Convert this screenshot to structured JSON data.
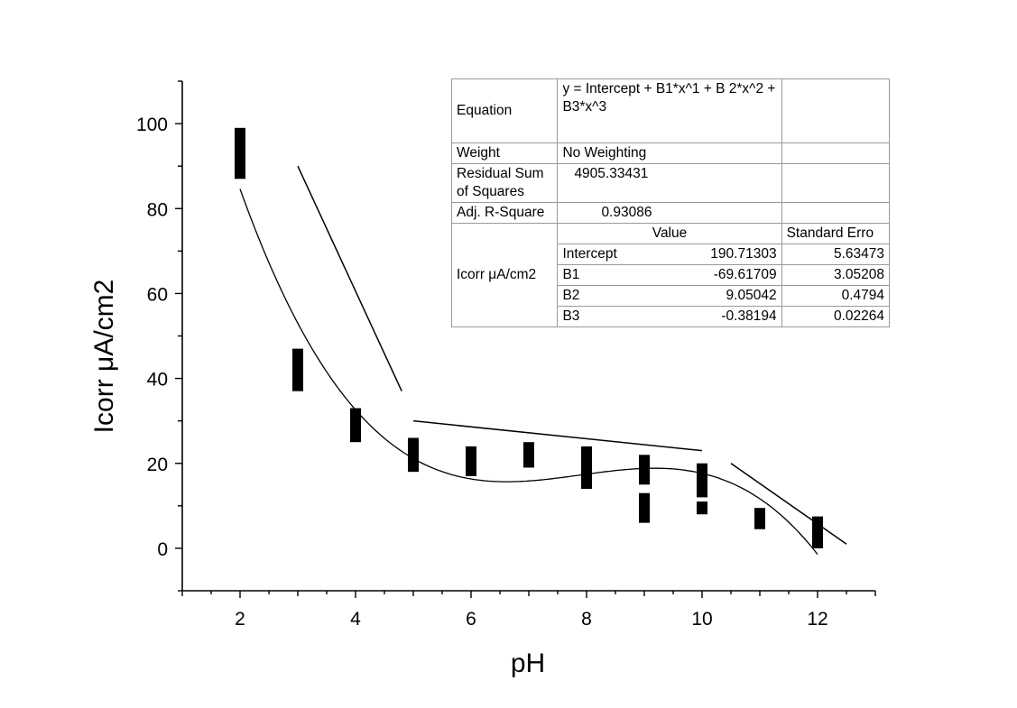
{
  "chart_data": {
    "type": "scatter",
    "title": "",
    "xlabel": "pH",
    "ylabel": "Icorr μA/cm2",
    "xlim": [
      1,
      13
    ],
    "ylim": [
      -10,
      110
    ],
    "x_ticks": [
      2,
      4,
      6,
      8,
      10,
      12
    ],
    "y_ticks": [
      0,
      20,
      40,
      60,
      80,
      100
    ],
    "grid": false,
    "series": [
      {
        "name": "Icorr",
        "marker": "filled-rectangle",
        "points": [
          {
            "x": 2,
            "low": 87,
            "high": 99
          },
          {
            "x": 3,
            "low": 37,
            "high": 47
          },
          {
            "x": 4,
            "low": 25,
            "high": 33
          },
          {
            "x": 5,
            "low": 18,
            "high": 26
          },
          {
            "x": 6,
            "low": 17,
            "high": 24
          },
          {
            "x": 7,
            "low": 19,
            "high": 25
          },
          {
            "x": 8,
            "low": 14,
            "high": 24
          },
          {
            "x": 9,
            "low": 15,
            "high": 22
          },
          {
            "x": 9,
            "low": 6,
            "high": 13
          },
          {
            "x": 10,
            "low": 12,
            "high": 20
          },
          {
            "x": 10,
            "low": 8,
            "high": 11
          },
          {
            "x": 11,
            "low": 4.5,
            "high": 9.5
          },
          {
            "x": 12,
            "low": 0,
            "high": 7.5
          }
        ]
      }
    ],
    "fit": {
      "model": "cubic",
      "intercept": 190.71303,
      "b1": -69.61709,
      "b2": 9.05042,
      "b3": -0.38194,
      "x_range": [
        2,
        12
      ]
    },
    "trend_lines": [
      {
        "x": [
          3,
          4.8
        ],
        "y": [
          90,
          37
        ]
      },
      {
        "x": [
          5,
          10
        ],
        "y": [
          30,
          23
        ]
      },
      {
        "x": [
          10.5,
          12.5
        ],
        "y": [
          20,
          1
        ]
      }
    ]
  },
  "fit_table": {
    "equation_label": "Equation",
    "equation_value": "y = Intercept + B1*x^1 + B 2*x^2 + B3*x^3",
    "weight_label": "Weight",
    "weight_value": "No Weighting",
    "rss_label": "Residual Sum of Squares",
    "rss_value": "4905.33431",
    "adj_r2_label": "Adj. R-Square",
    "adj_r2_value": "0.93086",
    "value_header": "Value",
    "stderr_header": "Standard Erro",
    "group_label": "Icorr μA/cm2",
    "params": [
      {
        "name": "Intercept",
        "value": "190.71303",
        "stderr": "5.63473"
      },
      {
        "name": "B1",
        "value": "-69.61709",
        "stderr": "3.05208"
      },
      {
        "name": "B2",
        "value": "9.05042",
        "stderr": "0.4794"
      },
      {
        "name": "B3",
        "value": "-0.38194",
        "stderr": "0.02264"
      }
    ]
  }
}
